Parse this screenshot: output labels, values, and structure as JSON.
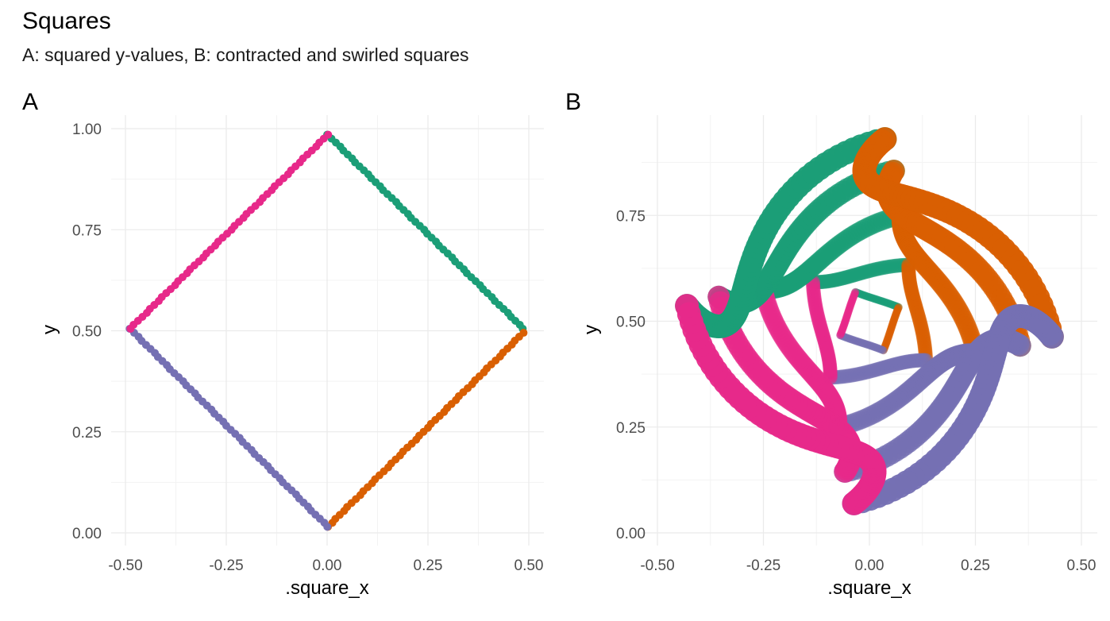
{
  "title": "Squares",
  "subtitle": "A: squared y-values, B: contracted and swirled squares",
  "colors": {
    "top_right": "#1b9e77",
    "bottom_right": "#d95f02",
    "bottom_left": "#7570b3",
    "top_left": "#e7298a",
    "gridline": "#ebebeb"
  },
  "chart_data": [
    {
      "panel": "A",
      "type": "scatter",
      "xlabel": ".square_x",
      "ylabel": "y",
      "xlim": [
        -0.5,
        0.5
      ],
      "ylim": [
        0.0,
        1.0
      ],
      "x_ticks": [
        "-0.50",
        "-0.25",
        "0.00",
        "0.25",
        "0.50"
      ],
      "y_ticks": [
        "0.00",
        "0.25",
        "0.50",
        "0.75",
        "1.00"
      ],
      "series": [
        {
          "color": "#1b9e77",
          "start": [
            0.0,
            0.985
          ],
          "end": [
            0.485,
            0.505
          ],
          "n": 50
        },
        {
          "color": "#d95f02",
          "start": [
            0.0,
            0.015
          ],
          "end": [
            0.485,
            0.495
          ],
          "n": 50
        },
        {
          "color": "#7570b3",
          "start": [
            -0.49,
            0.505
          ],
          "end": [
            0.0,
            0.015
          ],
          "n": 50
        },
        {
          "color": "#e7298a",
          "start": [
            -0.49,
            0.505
          ],
          "end": [
            0.0,
            0.985
          ],
          "n": 50
        }
      ]
    },
    {
      "panel": "B",
      "type": "scatter",
      "xlabel": ".square_x",
      "ylabel": "y",
      "xlim": [
        -0.5,
        0.5
      ],
      "ylim": [
        0.0,
        1.0
      ],
      "x_ticks": [
        "-0.50",
        "-0.25",
        "0.00",
        "0.25",
        "0.50"
      ],
      "y_ticks": [
        "0.00",
        "0.25",
        "0.50",
        "0.75"
      ],
      "rings": [
        {
          "scale": 0.17,
          "twist": 0.9,
          "marker": "small",
          "opacity": 0.35
        },
        {
          "scale": 0.36,
          "twist": 1.6,
          "marker": "medium",
          "opacity": 0.45
        },
        {
          "scale": 0.58,
          "twist": 2.3,
          "marker": "large",
          "opacity": 0.6
        },
        {
          "scale": 0.8,
          "twist": 3.0,
          "marker": "xlarge",
          "opacity": 0.8
        },
        {
          "scale": 0.96,
          "twist": 3.6,
          "marker": "xxlarge",
          "opacity": 0.95
        }
      ]
    }
  ]
}
